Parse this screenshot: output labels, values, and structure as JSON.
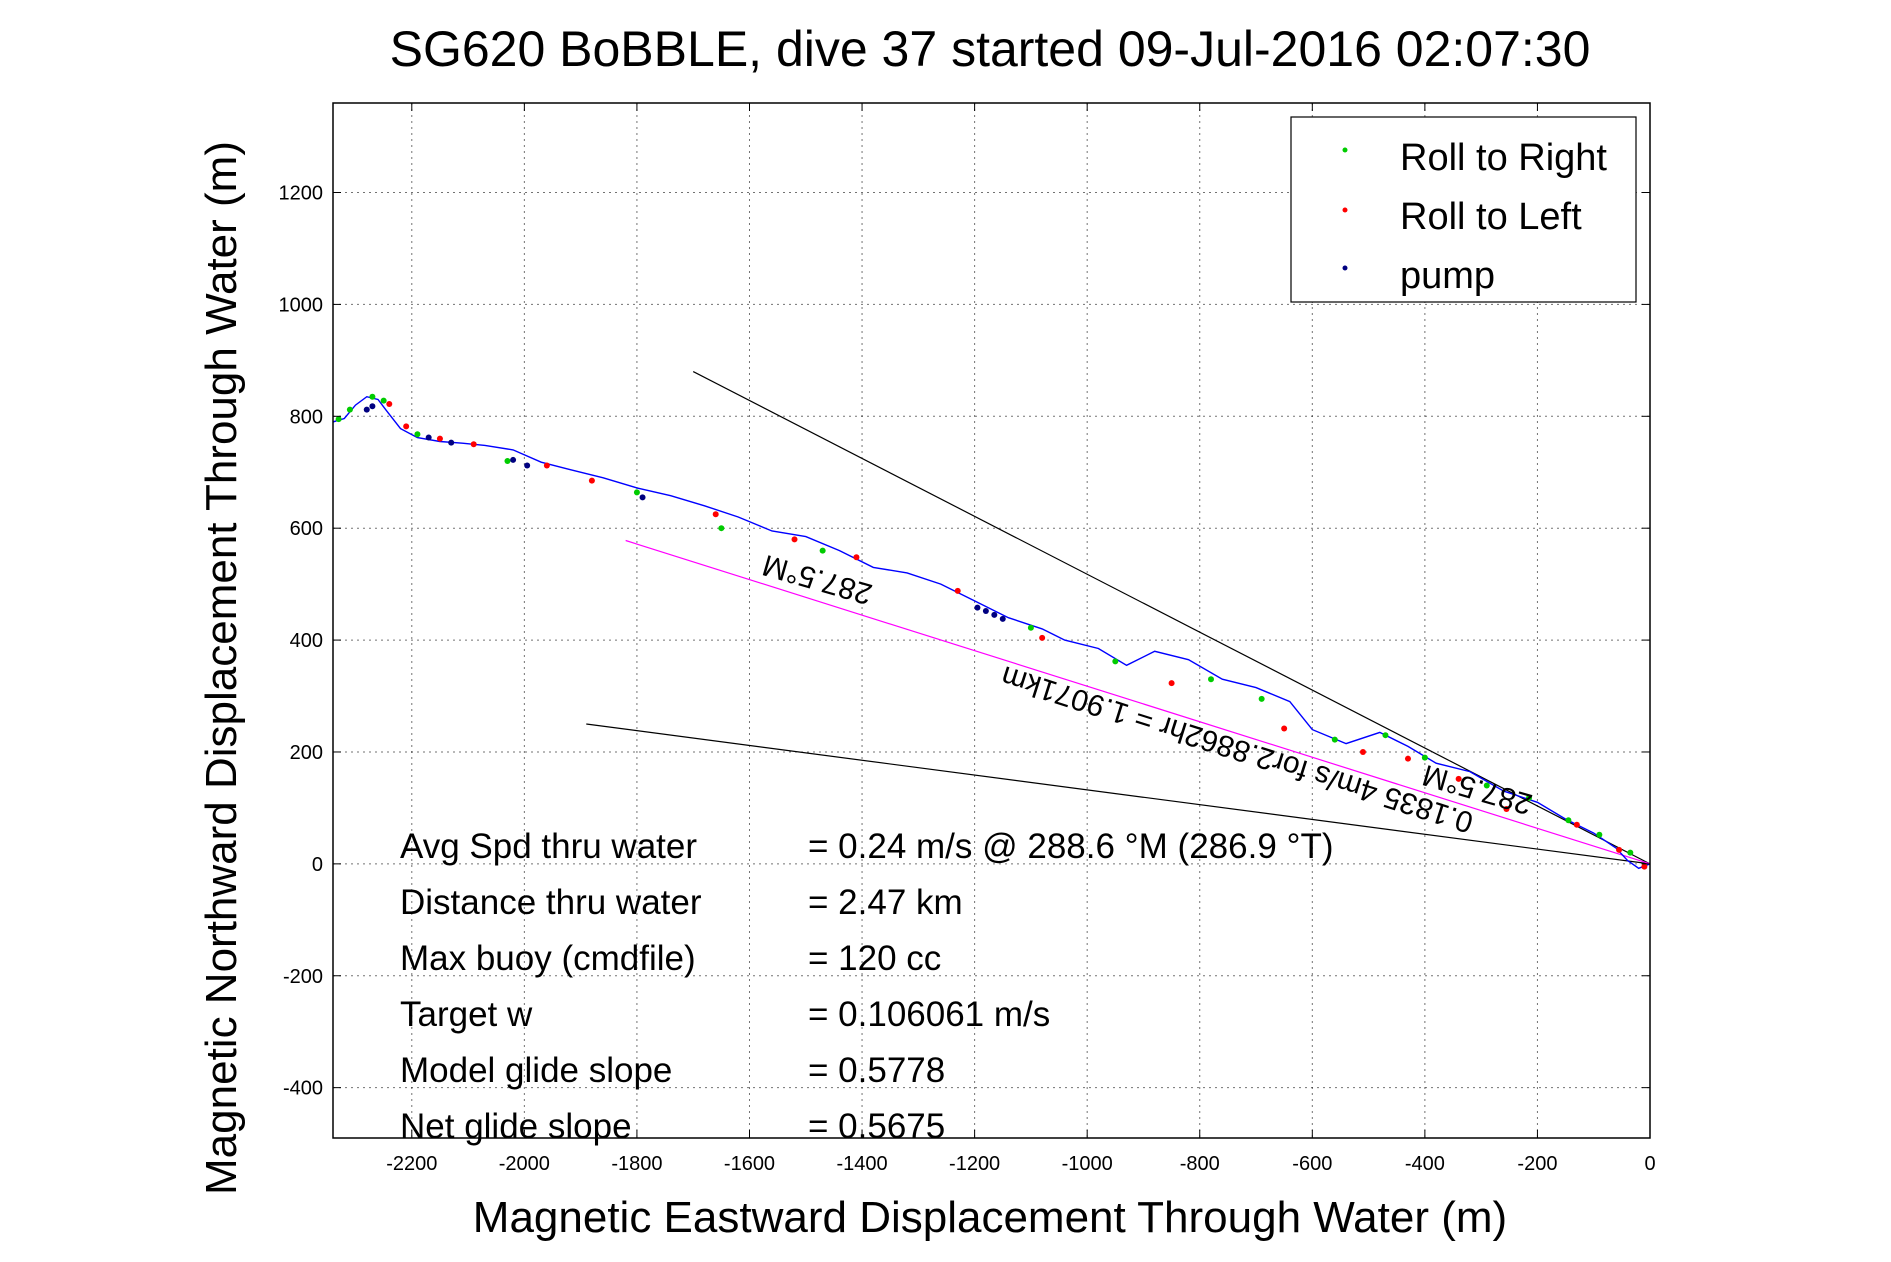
{
  "chart_data": {
    "type": "line",
    "title": "SG620 BoBBLE, dive 37 started 09-Jul-2016 02:07:30",
    "xlabel": "Magnetic Eastward Displacement Through Water (m)",
    "ylabel": "Magnetic Northward Displacement Through Water (m)",
    "xlim": [
      -2340,
      0
    ],
    "ylim": [
      -490,
      1360
    ],
    "xticks": [
      -2200,
      -2000,
      -1800,
      -1600,
      -1400,
      -1200,
      -1000,
      -800,
      -600,
      -400,
      -200,
      0
    ],
    "yticks": [
      -400,
      -200,
      0,
      200,
      400,
      600,
      800,
      1000,
      1200
    ],
    "xtick_labels": [
      "-2200",
      "-2000",
      "-1800",
      "-1600",
      "-1400",
      "-1200",
      "-1000",
      "-800",
      "-600",
      "-400",
      "-200",
      "0"
    ],
    "ytick_labels": [
      "-400",
      "-200",
      "0",
      "200",
      "400",
      "600",
      "800",
      "1000",
      "1200"
    ],
    "grid": true,
    "legend_position": "top-right",
    "legend": [
      {
        "label": "Roll to Right",
        "color": "#00cc00"
      },
      {
        "label": "Roll to Left",
        "color": "#ff0000"
      },
      {
        "label": "pump",
        "color": "#000080"
      }
    ],
    "track": {
      "name": "track",
      "color": "#0000ff",
      "x": [
        0,
        -20,
        -40,
        -60,
        -100,
        -150,
        -200,
        -260,
        -320,
        -380,
        -430,
        -480,
        -540,
        -600,
        -640,
        -700,
        -760,
        -820,
        -880,
        -930,
        -980,
        -1040,
        -1080,
        -1140,
        -1200,
        -1260,
        -1320,
        -1380,
        -1440,
        -1500,
        -1560,
        -1620,
        -1680,
        -1740,
        -1800,
        -1860,
        -1920,
        -1970,
        -2020,
        -2070,
        -2110,
        -2150,
        -2190,
        -2220,
        -2245,
        -2260,
        -2280,
        -2300,
        -2320,
        -2340
      ],
      "y": [
        0,
        -8,
        6,
        28,
        55,
        80,
        110,
        130,
        165,
        180,
        210,
        235,
        215,
        240,
        290,
        315,
        330,
        365,
        380,
        355,
        385,
        400,
        420,
        440,
        470,
        500,
        520,
        530,
        560,
        585,
        595,
        620,
        640,
        658,
        672,
        690,
        705,
        718,
        740,
        748,
        752,
        755,
        762,
        778,
        810,
        830,
        835,
        820,
        796,
        790
      ]
    },
    "roll_right": {
      "x": [
        -35,
        -90,
        -145,
        -215,
        -290,
        -400,
        -470,
        -560,
        -690,
        -780,
        -950,
        -1100,
        -1470,
        -1650,
        -1800,
        -2030,
        -2190,
        -2250,
        -2270,
        -2310,
        -2330
      ],
      "y": [
        20,
        52,
        78,
        118,
        140,
        190,
        230,
        222,
        295,
        330,
        362,
        422,
        560,
        600,
        664,
        720,
        768,
        828,
        835,
        812,
        795
      ]
    },
    "roll_left": {
      "x": [
        -10,
        -55,
        -130,
        -255,
        -340,
        -430,
        -510,
        -650,
        -850,
        -1080,
        -1230,
        -1410,
        -1520,
        -1660,
        -1880,
        -1960,
        -2090,
        -2150,
        -2210,
        -2240
      ],
      "y": [
        -5,
        25,
        70,
        98,
        152,
        188,
        200,
        242,
        323,
        404,
        488,
        548,
        580,
        625,
        685,
        712,
        750,
        760,
        782,
        822
      ]
    },
    "pump": {
      "x": [
        -1150,
        -1165,
        -1180,
        -1195,
        -1790,
        -1995,
        -2020,
        -2130,
        -2170,
        -2270,
        -2280
      ],
      "y": [
        438,
        445,
        452,
        458,
        655,
        712,
        722,
        753,
        762,
        818,
        812
      ]
    },
    "reference_lines": [
      {
        "name": "upper heading line",
        "color": "#000000",
        "x": [
          0,
          -1700
        ],
        "y": [
          0,
          880
        ]
      },
      {
        "name": "lower heading line",
        "color": "#000000",
        "x": [
          0,
          -1890
        ],
        "y": [
          0,
          250
        ]
      },
      {
        "name": "mean track line",
        "color": "#ff00ff",
        "x": [
          0,
          -1820
        ],
        "y": [
          0,
          578
        ]
      }
    ],
    "annotations": {
      "heading_upper": "287.5°M",
      "heading_lower": "287.5°M",
      "speed_line": "0.1835 4m/s for2.8862hr = 1.9071km"
    },
    "stats": [
      {
        "label": "Avg Spd thru water",
        "value": "=  0.24 m/s @ 288.6 °M (286.9 °T)"
      },
      {
        "label": "Distance thru water",
        "value": "=  2.47 km"
      },
      {
        "label": "Max buoy (cmdfile)",
        "value": "= 120 cc"
      },
      {
        "label": "Target w",
        "value": "= 0.106061 m/s"
      },
      {
        "label": "Model glide slope",
        "value": "= 0.5778"
      },
      {
        "label": "Net glide slope",
        "value": "= 0.5675"
      }
    ]
  }
}
